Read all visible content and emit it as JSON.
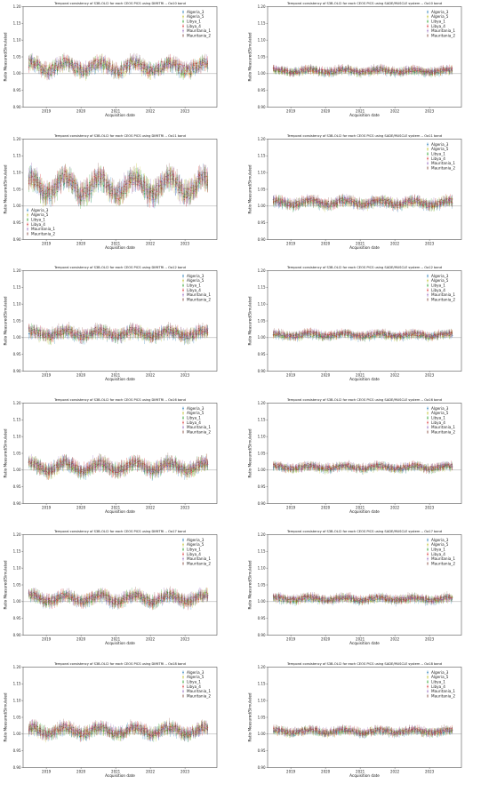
{
  "chart_data": [
    {
      "type": "scatter",
      "title": "Temporal consistency of S3B-OLCI for each CEOS PICS using DIMITRI -- Oa10 band",
      "xlabel": "Acquisition date",
      "ylabel": "Ratio Measured/Simulated",
      "ylim": [
        0.9,
        1.2
      ],
      "yticks": [
        "0.90",
        "0.95",
        "1.00",
        "1.05",
        "1.10",
        "1.15",
        "1.20"
      ],
      "xticks": [
        "2019",
        "2020",
        "2021",
        "2022",
        "2023"
      ],
      "xlim": [
        2018.33,
        2023.92
      ],
      "ref_line": 1.0,
      "legend_position": "upper right",
      "series_names": [
        "Algeria_3",
        "Algeria_5",
        "Libya_1",
        "Libya_4",
        "Mauritania_1",
        "Mauritania_2"
      ],
      "series_colors": [
        "#1f77b4",
        "#bcbd22",
        "#2ca02c",
        "#d62728",
        "#9467bd",
        "#8c564b"
      ],
      "base": 1.02,
      "amp": 0.012,
      "spread": 0.014,
      "errbar": 0.012
    },
    {
      "type": "scatter",
      "title": "Temporal consistency of S3B-OLCI for each CEOS PICS using SADE/MUSCLE system -- Oa10 band",
      "xlabel": "Acquisition date",
      "ylabel": "Ratio Measured/Simulated",
      "ylim": [
        0.9,
        1.2
      ],
      "yticks": [
        "0.90",
        "0.95",
        "1.00",
        "1.05",
        "1.10",
        "1.15",
        "1.20"
      ],
      "xticks": [
        "2019",
        "2020",
        "2021",
        "2022",
        "2023"
      ],
      "xlim": [
        2018.33,
        2023.92
      ],
      "ref_line": 1.0,
      "legend_position": "upper right",
      "series_names": [
        "Algeria_3",
        "Algeria_5",
        "Libya_1",
        "Libya_4",
        "Mauritania_1",
        "Mauritania_2"
      ],
      "series_colors": [
        "#1f77b4",
        "#bcbd22",
        "#2ca02c",
        "#d62728",
        "#9467bd",
        "#8c564b"
      ],
      "base": 1.008,
      "amp": 0.004,
      "spread": 0.006,
      "errbar": 0.008
    },
    {
      "type": "scatter",
      "title": "Temporal consistency of S3B-OLCI for each CEOS PICS using DIMITRI -- Oa11 band",
      "xlabel": "Acquisition date",
      "ylabel": "Ratio Measured/Simulated",
      "ylim": [
        0.9,
        1.2
      ],
      "yticks": [
        "0.90",
        "0.95",
        "1.00",
        "1.05",
        "1.10",
        "1.15",
        "1.20"
      ],
      "xticks": [
        "2019",
        "2020",
        "2021",
        "2022",
        "2023"
      ],
      "xlim": [
        2018.33,
        2023.92
      ],
      "ref_line": 1.0,
      "legend_position": "lower left",
      "series_names": [
        "Algeria_3",
        "Algeria_5",
        "Libya_1",
        "Libya_4",
        "Mauritania_1",
        "Mauritania_2"
      ],
      "series_colors": [
        "#1f77b4",
        "#bcbd22",
        "#2ca02c",
        "#d62728",
        "#9467bd",
        "#8c564b"
      ],
      "base": 1.06,
      "amp": 0.025,
      "spread": 0.02,
      "errbar": 0.02
    },
    {
      "type": "scatter",
      "title": "Temporal consistency of S3B-OLCI for each CEOS PICS using SADE/MUSCLE system -- Oa11 band",
      "xlabel": "Acquisition date",
      "ylabel": "Ratio Measured/Simulated",
      "ylim": [
        0.9,
        1.2
      ],
      "yticks": [
        "0.90",
        "0.95",
        "1.00",
        "1.05",
        "1.10",
        "1.15",
        "1.20"
      ],
      "xticks": [
        "2019",
        "2020",
        "2021",
        "2022",
        "2023"
      ],
      "xlim": [
        2018.33,
        2023.92
      ],
      "ref_line": 1.0,
      "legend_position": "upper right",
      "series_names": [
        "Algeria_3",
        "Algeria_5",
        "Libya_1",
        "Libya_4",
        "Mauritania_1",
        "Mauritania_2"
      ],
      "series_colors": [
        "#1f77b4",
        "#bcbd22",
        "#2ca02c",
        "#d62728",
        "#9467bd",
        "#8c564b"
      ],
      "base": 1.01,
      "amp": 0.006,
      "spread": 0.008,
      "errbar": 0.01
    },
    {
      "type": "scatter",
      "title": "Temporal consistency of S3B-OLCI for each CEOS PICS using DIMITRI -- Oa12 band",
      "xlabel": "Acquisition date",
      "ylabel": "Ratio Measured/Simulated",
      "ylim": [
        0.9,
        1.2
      ],
      "yticks": [
        "0.90",
        "0.95",
        "1.00",
        "1.05",
        "1.10",
        "1.15",
        "1.20"
      ],
      "xticks": [
        "2019",
        "2020",
        "2021",
        "2022",
        "2023"
      ],
      "xlim": [
        2018.33,
        2023.92
      ],
      "ref_line": 1.0,
      "legend_position": "upper right",
      "series_names": [
        "Algeria_3",
        "Algeria_5",
        "Libya_1",
        "Libya_4",
        "Mauritania_1",
        "Mauritania_2"
      ],
      "series_colors": [
        "#1f77b4",
        "#bcbd22",
        "#2ca02c",
        "#d62728",
        "#9467bd",
        "#8c564b"
      ],
      "base": 1.012,
      "amp": 0.008,
      "spread": 0.01,
      "errbar": 0.012
    },
    {
      "type": "scatter",
      "title": "Temporal consistency of S3B-OLCI for each CEOS PICS using SADE/MUSCLE system -- Oa12 band",
      "xlabel": "Acquisition date",
      "ylabel": "Ratio Measured/Simulated",
      "ylim": [
        0.9,
        1.2
      ],
      "yticks": [
        "0.90",
        "0.95",
        "1.00",
        "1.05",
        "1.10",
        "1.15",
        "1.20"
      ],
      "xticks": [
        "2019",
        "2020",
        "2021",
        "2022",
        "2023"
      ],
      "xlim": [
        2018.33,
        2023.92
      ],
      "ref_line": 1.0,
      "legend_position": "upper right",
      "series_names": [
        "Algeria_3",
        "Algeria_5",
        "Libya_1",
        "Libya_4",
        "Mauritania_1",
        "Mauritania_2"
      ],
      "series_colors": [
        "#1f77b4",
        "#bcbd22",
        "#2ca02c",
        "#d62728",
        "#9467bd",
        "#8c564b"
      ],
      "base": 1.008,
      "amp": 0.004,
      "spread": 0.006,
      "errbar": 0.008
    },
    {
      "type": "scatter",
      "title": "Temporal consistency of S3B-OLCI for each CEOS PICS using DIMITRI -- Oa16 band",
      "xlabel": "Acquisition date",
      "ylabel": "Ratio Measured/Simulated",
      "ylim": [
        0.9,
        1.2
      ],
      "yticks": [
        "0.90",
        "0.95",
        "1.00",
        "1.05",
        "1.10",
        "1.15",
        "1.20"
      ],
      "xticks": [
        "2019",
        "2020",
        "2021",
        "2022",
        "2023"
      ],
      "xlim": [
        2018.33,
        2023.92
      ],
      "ref_line": 1.0,
      "legend_position": "upper right",
      "series_names": [
        "Algeria_3",
        "Algeria_5",
        "Libya_1",
        "Libya_4",
        "Mauritania_1",
        "Mauritania_2"
      ],
      "series_colors": [
        "#1f77b4",
        "#bcbd22",
        "#2ca02c",
        "#d62728",
        "#9467bd",
        "#8c564b"
      ],
      "base": 1.01,
      "amp": 0.012,
      "spread": 0.01,
      "errbar": 0.014
    },
    {
      "type": "scatter",
      "title": "Temporal consistency of S3B-OLCI for each CEOS PICS using SADE/MUSCLE system -- Oa16 band",
      "xlabel": "Acquisition date",
      "ylabel": "Ratio Measured/Simulated",
      "ylim": [
        0.9,
        1.2
      ],
      "yticks": [
        "0.90",
        "0.95",
        "1.00",
        "1.05",
        "1.10",
        "1.15",
        "1.20"
      ],
      "xticks": [
        "2019",
        "2020",
        "2021",
        "2022",
        "2023"
      ],
      "xlim": [
        2018.33,
        2023.92
      ],
      "ref_line": 1.0,
      "legend_position": "upper right",
      "series_names": [
        "Algeria_3",
        "Algeria_5",
        "Libya_1",
        "Libya_4",
        "Mauritania_1",
        "Mauritania_2"
      ],
      "series_colors": [
        "#1f77b4",
        "#bcbd22",
        "#2ca02c",
        "#d62728",
        "#9467bd",
        "#8c564b"
      ],
      "base": 1.008,
      "amp": 0.004,
      "spread": 0.006,
      "errbar": 0.008
    },
    {
      "type": "scatter",
      "title": "Temporal consistency of S3B-OLCI for each CEOS PICS using DIMITRI -- Oa17 band",
      "xlabel": "Acquisition date",
      "ylabel": "Ratio Measured/Simulated",
      "ylim": [
        0.9,
        1.2
      ],
      "yticks": [
        "0.90",
        "0.95",
        "1.00",
        "1.05",
        "1.10",
        "1.15",
        "1.20"
      ],
      "xticks": [
        "2019",
        "2020",
        "2021",
        "2022",
        "2023"
      ],
      "xlim": [
        2018.33,
        2023.92
      ],
      "ref_line": 1.0,
      "legend_position": "upper right",
      "series_names": [
        "Algeria_3",
        "Algeria_5",
        "Libya_1",
        "Libya_4",
        "Mauritania_1",
        "Mauritania_2"
      ],
      "series_colors": [
        "#1f77b4",
        "#bcbd22",
        "#2ca02c",
        "#d62728",
        "#9467bd",
        "#8c564b"
      ],
      "base": 1.01,
      "amp": 0.01,
      "spread": 0.01,
      "errbar": 0.012
    },
    {
      "type": "scatter",
      "title": "Temporal consistency of S3B-OLCI for each CEOS PICS using SADE/MUSCLE system -- Oa17 band",
      "xlabel": "Acquisition date",
      "ylabel": "Ratio Measured/Simulated",
      "ylim": [
        0.9,
        1.2
      ],
      "yticks": [
        "0.90",
        "0.95",
        "1.00",
        "1.05",
        "1.10",
        "1.15",
        "1.20"
      ],
      "xticks": [
        "2019",
        "2020",
        "2021",
        "2022",
        "2023"
      ],
      "xlim": [
        2018.33,
        2023.92
      ],
      "ref_line": 1.0,
      "legend_position": "upper right",
      "series_names": [
        "Algeria_3",
        "Algeria_5",
        "Libya_1",
        "Libya_4",
        "Mauritania_1",
        "Mauritania_2"
      ],
      "series_colors": [
        "#1f77b4",
        "#bcbd22",
        "#2ca02c",
        "#d62728",
        "#9467bd",
        "#8c564b"
      ],
      "base": 1.008,
      "amp": 0.004,
      "spread": 0.006,
      "errbar": 0.008
    },
    {
      "type": "scatter",
      "title": "Temporal consistency of S3B-OLCI for each CEOS PICS using DIMITRI -- Oa18 band",
      "xlabel": "Acquisition date",
      "ylabel": "Ratio Measured/Simulated",
      "ylim": [
        0.9,
        1.2
      ],
      "yticks": [
        "0.90",
        "0.95",
        "1.00",
        "1.05",
        "1.10",
        "1.15",
        "1.20"
      ],
      "xticks": [
        "2019",
        "2020",
        "2021",
        "2022",
        "2023"
      ],
      "xlim": [
        2018.33,
        2023.92
      ],
      "ref_line": 1.0,
      "legend_position": "upper right",
      "series_names": [
        "Algeria_3",
        "Algeria_5",
        "Libya_1",
        "Libya_4",
        "Mauritania_1",
        "Mauritania_2"
      ],
      "series_colors": [
        "#1f77b4",
        "#bcbd22",
        "#2ca02c",
        "#d62728",
        "#9467bd",
        "#8c564b"
      ],
      "base": 1.01,
      "amp": 0.01,
      "spread": 0.01,
      "errbar": 0.012
    },
    {
      "type": "scatter",
      "title": "Temporal consistency of S3B-OLCI for each CEOS PICS using SADE/MUSCLE system -- Oa18 band",
      "xlabel": "Acquisition date",
      "ylabel": "Ratio Measured/Simulated",
      "ylim": [
        0.9,
        1.2
      ],
      "yticks": [
        "0.90",
        "0.95",
        "1.00",
        "1.05",
        "1.10",
        "1.15",
        "1.20"
      ],
      "xticks": [
        "2019",
        "2020",
        "2021",
        "2022",
        "2023"
      ],
      "xlim": [
        2018.33,
        2023.92
      ],
      "ref_line": 1.0,
      "legend_position": "upper right",
      "series_names": [
        "Algeria_3",
        "Algeria_5",
        "Libya_1",
        "Libya_4",
        "Mauritania_1",
        "Mauritania_2"
      ],
      "series_colors": [
        "#1f77b4",
        "#bcbd22",
        "#2ca02c",
        "#d62728",
        "#9467bd",
        "#8c564b"
      ],
      "base": 1.008,
      "amp": 0.004,
      "spread": 0.006,
      "errbar": 0.008
    }
  ]
}
